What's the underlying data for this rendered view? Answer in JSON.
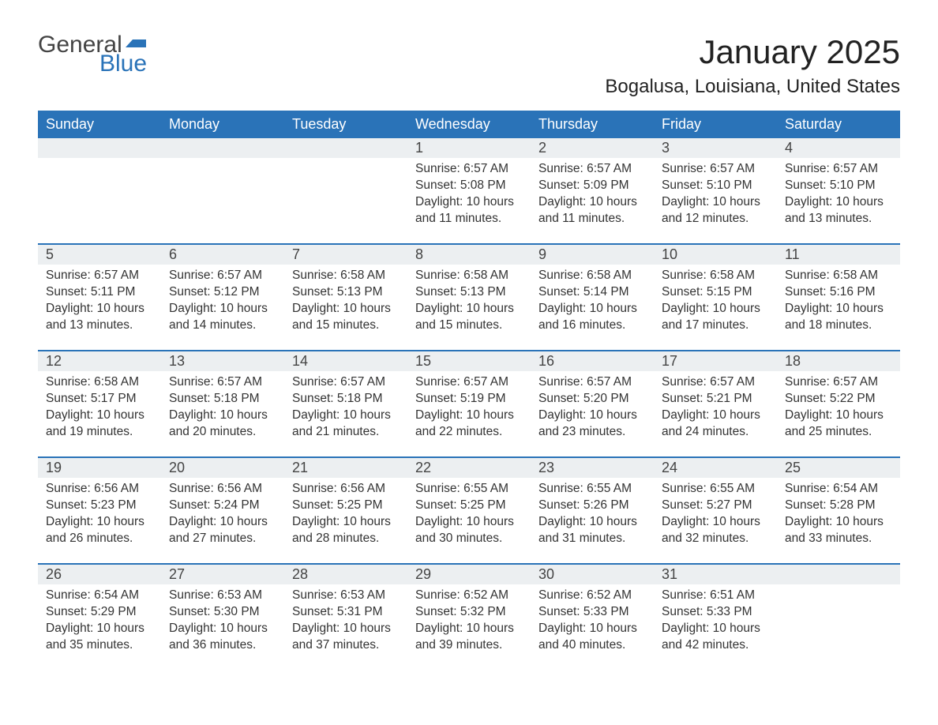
{
  "logo": {
    "general": "General",
    "blue": "Blue",
    "flag_color": "#2a73b8"
  },
  "title": "January 2025",
  "location": "Bogalusa, Louisiana, United States",
  "colors": {
    "header_bg": "#2a73b8",
    "header_text": "#ffffff",
    "daynum_bg": "#eceff1",
    "body_text": "#333333",
    "week_divider": "#2a73b8"
  },
  "typography": {
    "title_fontsize": 42,
    "location_fontsize": 24,
    "header_fontsize": 18,
    "daynum_fontsize": 18,
    "body_fontsize": 15.5
  },
  "day_headers": [
    "Sunday",
    "Monday",
    "Tuesday",
    "Wednesday",
    "Thursday",
    "Friday",
    "Saturday"
  ],
  "weeks": [
    [
      null,
      null,
      null,
      {
        "n": "1",
        "sunrise": "6:57 AM",
        "sunset": "5:08 PM",
        "dl_h": "10",
        "dl_m": "11"
      },
      {
        "n": "2",
        "sunrise": "6:57 AM",
        "sunset": "5:09 PM",
        "dl_h": "10",
        "dl_m": "11"
      },
      {
        "n": "3",
        "sunrise": "6:57 AM",
        "sunset": "5:10 PM",
        "dl_h": "10",
        "dl_m": "12"
      },
      {
        "n": "4",
        "sunrise": "6:57 AM",
        "sunset": "5:10 PM",
        "dl_h": "10",
        "dl_m": "13"
      }
    ],
    [
      {
        "n": "5",
        "sunrise": "6:57 AM",
        "sunset": "5:11 PM",
        "dl_h": "10",
        "dl_m": "13"
      },
      {
        "n": "6",
        "sunrise": "6:57 AM",
        "sunset": "5:12 PM",
        "dl_h": "10",
        "dl_m": "14"
      },
      {
        "n": "7",
        "sunrise": "6:58 AM",
        "sunset": "5:13 PM",
        "dl_h": "10",
        "dl_m": "15"
      },
      {
        "n": "8",
        "sunrise": "6:58 AM",
        "sunset": "5:13 PM",
        "dl_h": "10",
        "dl_m": "15"
      },
      {
        "n": "9",
        "sunrise": "6:58 AM",
        "sunset": "5:14 PM",
        "dl_h": "10",
        "dl_m": "16"
      },
      {
        "n": "10",
        "sunrise": "6:58 AM",
        "sunset": "5:15 PM",
        "dl_h": "10",
        "dl_m": "17"
      },
      {
        "n": "11",
        "sunrise": "6:58 AM",
        "sunset": "5:16 PM",
        "dl_h": "10",
        "dl_m": "18"
      }
    ],
    [
      {
        "n": "12",
        "sunrise": "6:58 AM",
        "sunset": "5:17 PM",
        "dl_h": "10",
        "dl_m": "19"
      },
      {
        "n": "13",
        "sunrise": "6:57 AM",
        "sunset": "5:18 PM",
        "dl_h": "10",
        "dl_m": "20"
      },
      {
        "n": "14",
        "sunrise": "6:57 AM",
        "sunset": "5:18 PM",
        "dl_h": "10",
        "dl_m": "21"
      },
      {
        "n": "15",
        "sunrise": "6:57 AM",
        "sunset": "5:19 PM",
        "dl_h": "10",
        "dl_m": "22"
      },
      {
        "n": "16",
        "sunrise": "6:57 AM",
        "sunset": "5:20 PM",
        "dl_h": "10",
        "dl_m": "23"
      },
      {
        "n": "17",
        "sunrise": "6:57 AM",
        "sunset": "5:21 PM",
        "dl_h": "10",
        "dl_m": "24"
      },
      {
        "n": "18",
        "sunrise": "6:57 AM",
        "sunset": "5:22 PM",
        "dl_h": "10",
        "dl_m": "25"
      }
    ],
    [
      {
        "n": "19",
        "sunrise": "6:56 AM",
        "sunset": "5:23 PM",
        "dl_h": "10",
        "dl_m": "26"
      },
      {
        "n": "20",
        "sunrise": "6:56 AM",
        "sunset": "5:24 PM",
        "dl_h": "10",
        "dl_m": "27"
      },
      {
        "n": "21",
        "sunrise": "6:56 AM",
        "sunset": "5:25 PM",
        "dl_h": "10",
        "dl_m": "28"
      },
      {
        "n": "22",
        "sunrise": "6:55 AM",
        "sunset": "5:25 PM",
        "dl_h": "10",
        "dl_m": "30"
      },
      {
        "n": "23",
        "sunrise": "6:55 AM",
        "sunset": "5:26 PM",
        "dl_h": "10",
        "dl_m": "31"
      },
      {
        "n": "24",
        "sunrise": "6:55 AM",
        "sunset": "5:27 PM",
        "dl_h": "10",
        "dl_m": "32"
      },
      {
        "n": "25",
        "sunrise": "6:54 AM",
        "sunset": "5:28 PM",
        "dl_h": "10",
        "dl_m": "33"
      }
    ],
    [
      {
        "n": "26",
        "sunrise": "6:54 AM",
        "sunset": "5:29 PM",
        "dl_h": "10",
        "dl_m": "35"
      },
      {
        "n": "27",
        "sunrise": "6:53 AM",
        "sunset": "5:30 PM",
        "dl_h": "10",
        "dl_m": "36"
      },
      {
        "n": "28",
        "sunrise": "6:53 AM",
        "sunset": "5:31 PM",
        "dl_h": "10",
        "dl_m": "37"
      },
      {
        "n": "29",
        "sunrise": "6:52 AM",
        "sunset": "5:32 PM",
        "dl_h": "10",
        "dl_m": "39"
      },
      {
        "n": "30",
        "sunrise": "6:52 AM",
        "sunset": "5:33 PM",
        "dl_h": "10",
        "dl_m": "40"
      },
      {
        "n": "31",
        "sunrise": "6:51 AM",
        "sunset": "5:33 PM",
        "dl_h": "10",
        "dl_m": "42"
      },
      null
    ]
  ],
  "labels": {
    "sunrise": "Sunrise:",
    "sunset": "Sunset:",
    "daylight_prefix": "Daylight:",
    "hours_word": "hours",
    "and_word": "and",
    "minutes_word": "minutes."
  }
}
